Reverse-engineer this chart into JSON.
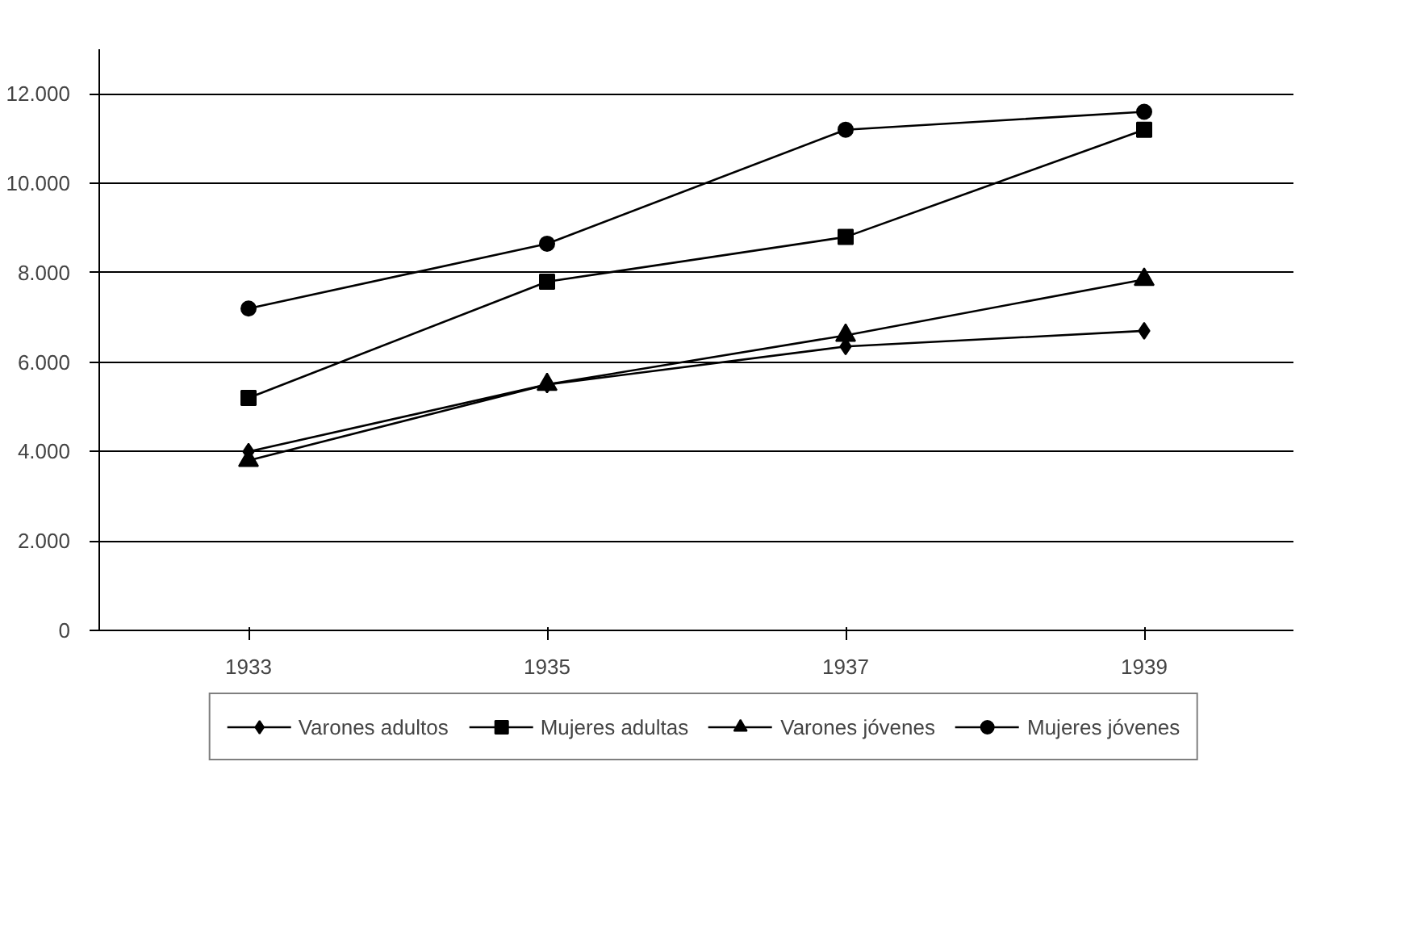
{
  "chart_data": {
    "type": "line",
    "categories": [
      "1933",
      "1935",
      "1937",
      "1939"
    ],
    "series": [
      {
        "name": "Varones adultos",
        "color": "#000000",
        "marker": "diamond",
        "values": [
          4000,
          5500,
          6350,
          6700
        ]
      },
      {
        "name": "Mujeres adultas",
        "color": "#000000",
        "marker": "square",
        "values": [
          5200,
          7800,
          8800,
          11200
        ]
      },
      {
        "name": "Varones jóvenes",
        "color": "#000000",
        "marker": "triangle",
        "values": [
          3800,
          5500,
          6600,
          7850
        ]
      },
      {
        "name": "Mujeres jóvenes",
        "color": "#000000",
        "marker": "circle",
        "values": [
          7200,
          8650,
          11200,
          11600
        ]
      }
    ],
    "ylim": [
      0,
      13000
    ],
    "yticks": [
      0,
      {
        "value": 2000,
        "label": "2.000"
      },
      {
        "value": 4000,
        "label": "4.000"
      },
      {
        "value": 6000,
        "label": "6.000"
      },
      {
        "value": 8000,
        "label": "8.000"
      },
      {
        "value": 10000,
        "label": "10.000"
      },
      {
        "value": 12000,
        "label": "12.000"
      }
    ],
    "grid": "y",
    "legend": "bottom",
    "line_style": "solid"
  }
}
